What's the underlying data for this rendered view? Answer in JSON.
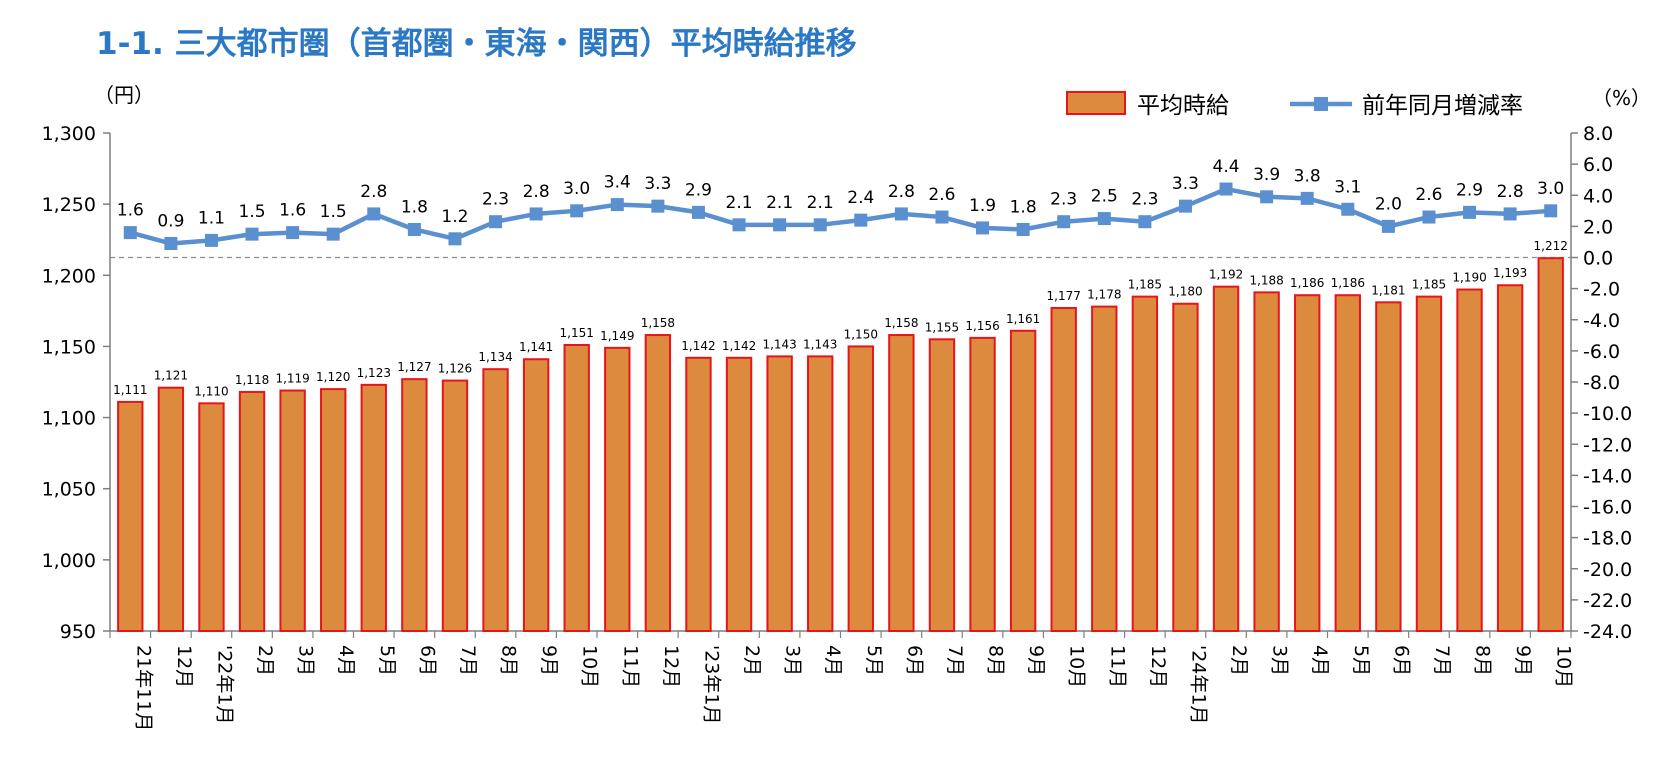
{
  "chart_data": {
    "type": "bar",
    "title": "1-1. 三大都市圏（首都圏・東海・関西）平均時給推移",
    "ylabel_left": "（円）",
    "ylabel_right": "（%）",
    "ylim_left": [
      950,
      1300
    ],
    "yticks_left": [
      "950",
      "1,000",
      "1,050",
      "1,100",
      "1,150",
      "1,200",
      "1,250",
      "1,300"
    ],
    "ylim_right": [
      -24,
      8
    ],
    "yticks_right": [
      "-24.0",
      "-22.0",
      "-20.0",
      "-18.0",
      "-16.0",
      "-14.0",
      "-12.0",
      "-10.0",
      "-8.0",
      "-6.0",
      "-4.0",
      "-2.0",
      "0.0",
      "2.0",
      "4.0",
      "6.0",
      "8.0"
    ],
    "categories": [
      "21年11月",
      "12月",
      "'22年1月",
      "2月",
      "3月",
      "4月",
      "5月",
      "6月",
      "7月",
      "8月",
      "9月",
      "10月",
      "11月",
      "12月",
      "'23年1月",
      "2月",
      "3月",
      "4月",
      "5月",
      "6月",
      "7月",
      "8月",
      "9月",
      "10月",
      "11月",
      "12月",
      "'24年1月",
      "2月",
      "3月",
      "4月",
      "5月",
      "6月",
      "7月",
      "8月",
      "9月",
      "10月"
    ],
    "series": [
      {
        "name": "平均時給",
        "type": "bar",
        "axis": "left",
        "color": "#db8a3e",
        "border": "#e8141b",
        "values": [
          1111,
          1121,
          1110,
          1118,
          1119,
          1120,
          1123,
          1127,
          1126,
          1134,
          1141,
          1151,
          1149,
          1158,
          1142,
          1142,
          1143,
          1143,
          1150,
          1158,
          1155,
          1156,
          1161,
          1177,
          1178,
          1185,
          1180,
          1192,
          1188,
          1186,
          1186,
          1181,
          1185,
          1190,
          1193,
          1212
        ],
        "labels": [
          "1,111",
          "1,121",
          "1,110",
          "1,118",
          "1,119",
          "1,120",
          "1,123",
          "1,127",
          "1,126",
          "1,134",
          "1,141",
          "1,151",
          "1,149",
          "1,158",
          "1,142",
          "1,142",
          "1,143",
          "1,143",
          "1,150",
          "1,158",
          "1,155",
          "1,156",
          "1,161",
          "1,177",
          "1,178",
          "1,185",
          "1,180",
          "1,192",
          "1,188",
          "1,186",
          "1,186",
          "1,181",
          "1,185",
          "1,190",
          "1,193",
          "1,212"
        ]
      },
      {
        "name": "前年同月増減率",
        "type": "line",
        "axis": "right",
        "color": "#5a8fd0",
        "marker": "#5a8fd0",
        "values": [
          1.6,
          0.9,
          1.1,
          1.5,
          1.6,
          1.5,
          2.8,
          1.8,
          1.2,
          2.3,
          2.8,
          3.0,
          3.4,
          3.3,
          2.9,
          2.1,
          2.1,
          2.1,
          2.4,
          2.8,
          2.6,
          1.9,
          1.8,
          2.3,
          2.5,
          2.3,
          3.3,
          4.4,
          3.9,
          3.8,
          3.1,
          2.0,
          2.6,
          2.9,
          2.8,
          3.0
        ],
        "labels": [
          "1.6",
          "0.9",
          "1.1",
          "1.5",
          "1.6",
          "1.5",
          "2.8",
          "1.8",
          "1.2",
          "2.3",
          "2.8",
          "3.0",
          "3.4",
          "3.3",
          "2.9",
          "2.1",
          "2.1",
          "2.1",
          "2.4",
          "2.8",
          "2.6",
          "1.9",
          "1.8",
          "2.3",
          "2.5",
          "2.3",
          "3.3",
          "4.4",
          "3.9",
          "3.8",
          "3.1",
          "2.0",
          "2.6",
          "2.9",
          "2.8",
          "3.0"
        ]
      }
    ],
    "legend": {
      "placement": "top-right",
      "items": [
        "平均時給",
        "前年同月増減率"
      ]
    },
    "grid": false,
    "zero_line_right": "dashed"
  }
}
